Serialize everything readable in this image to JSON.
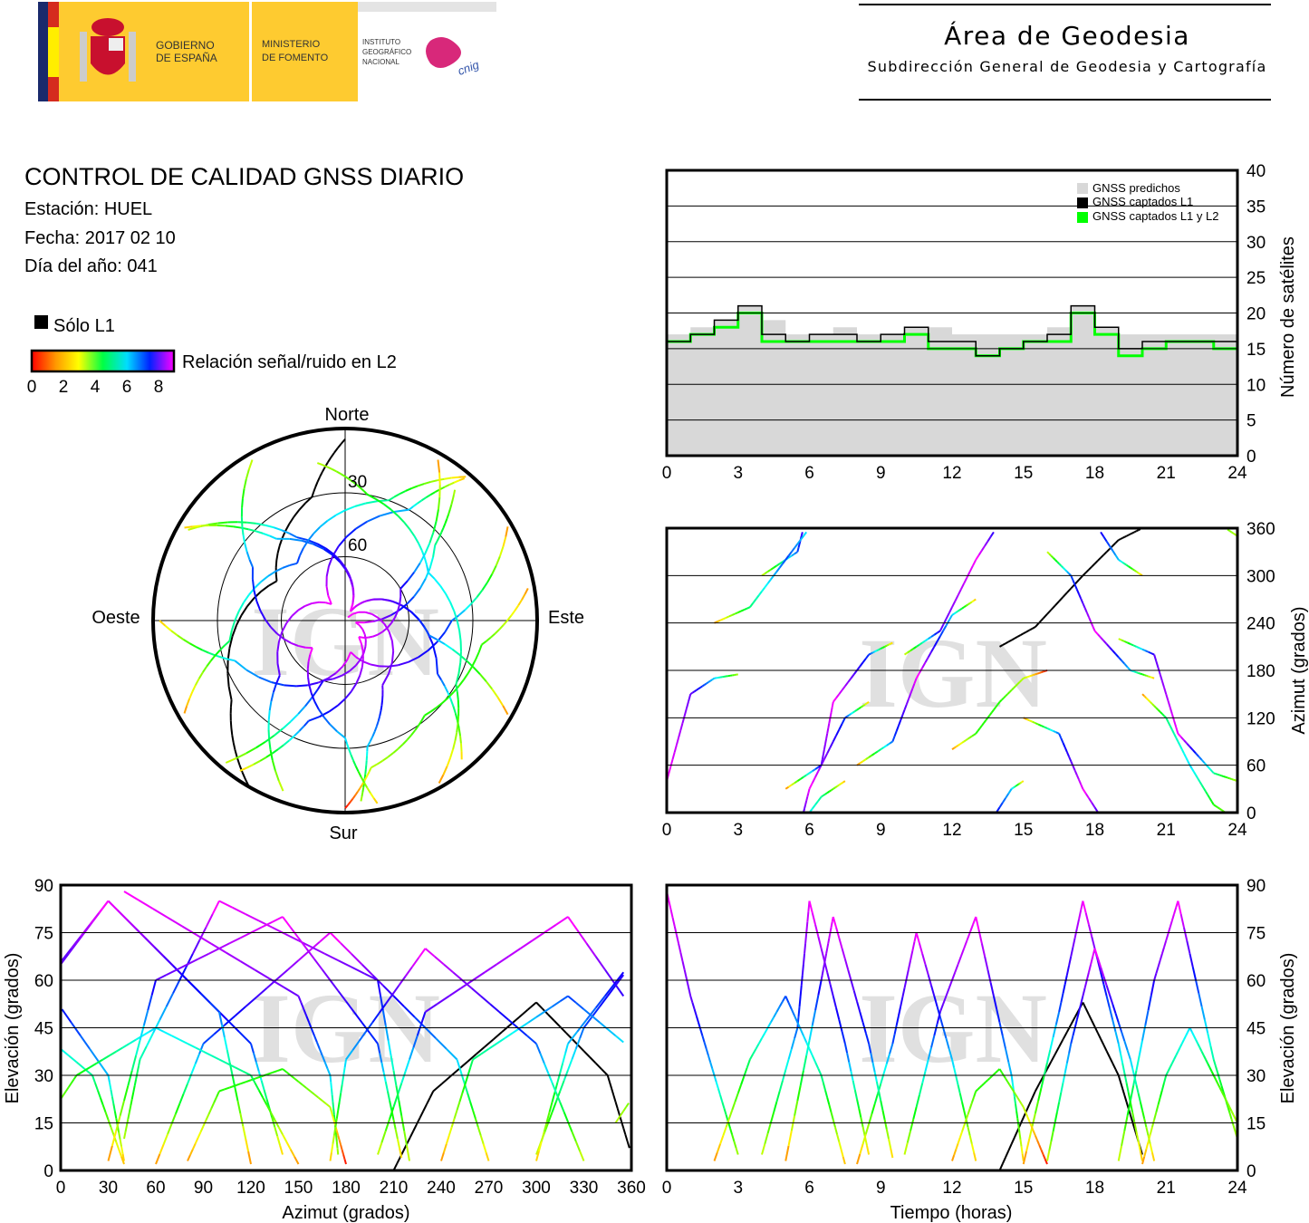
{
  "header": {
    "gov_line1": "GOBIERNO",
    "gov_line2": "DE ESPAÑA",
    "min_line1": "MINISTERIO",
    "min_line2": "DE FOMENTO",
    "ign_line1": "INSTITUTO",
    "ign_line2": "GEOGRÁFICO",
    "ign_line3": "NACIONAL",
    "cnig_logo": "cnig",
    "area_title": "Área de Geodesia",
    "area_subtitle": "Subdirección General de Geodesia y Cartografía"
  },
  "info": {
    "title": "CONTROL DE CALIDAD GNSS DIARIO",
    "station": "Estación: HUEL",
    "date": "Fecha: 2017 02 10",
    "doy": "Día del año: 041"
  },
  "legend": {
    "solo_l1": "Sólo L1",
    "snr_label": "Relación señal/ruido en L2",
    "snr_ticks": [
      "0",
      "2",
      "4",
      "6",
      "8"
    ],
    "solo_l1_color": "#000000"
  },
  "watermark": "IGN",
  "chart_data": [
    {
      "type": "line",
      "id": "satellite-count",
      "xlabel": "",
      "ylabel": "Número de satélites",
      "xlim": [
        0,
        24
      ],
      "ylim": [
        0,
        40
      ],
      "xticks": [
        "0",
        "3",
        "6",
        "9",
        "12",
        "15",
        "18",
        "21",
        "24"
      ],
      "yticks": [
        "0",
        "5",
        "10",
        "15",
        "20",
        "25",
        "30",
        "35",
        "40"
      ],
      "grid": true,
      "legend_position": "top-right",
      "x": [
        0,
        1,
        2,
        3,
        4,
        5,
        6,
        7,
        8,
        9,
        10,
        11,
        12,
        13,
        14,
        15,
        16,
        17,
        18,
        19,
        20,
        21,
        22,
        23,
        24
      ],
      "series": [
        {
          "name": "GNSS predichos",
          "color": "#d8d8d8",
          "values": [
            17,
            18,
            19,
            21,
            19,
            17,
            17,
            18,
            17,
            17,
            18,
            18,
            17,
            17,
            17,
            17,
            18,
            21,
            18,
            17,
            17,
            17,
            17,
            17,
            17
          ]
        },
        {
          "name": "GNSS captados L1",
          "color": "#000000",
          "values": [
            16,
            17,
            19,
            21,
            17,
            16,
            17,
            17,
            16,
            17,
            18,
            16,
            16,
            14,
            15,
            16,
            17,
            21,
            18,
            15,
            16,
            16,
            16,
            16,
            16
          ]
        },
        {
          "name": "GNSS captados L1 y L2",
          "color": "#00ff00",
          "values": [
            16,
            17,
            18,
            20,
            16,
            16,
            16,
            16,
            16,
            16,
            17,
            15,
            15,
            14,
            15,
            16,
            16,
            20,
            17,
            14,
            15,
            16,
            16,
            15,
            16
          ]
        }
      ]
    },
    {
      "type": "scatter",
      "id": "skyplot",
      "directions": {
        "north": "Norte",
        "south": "Sur",
        "west": "Oeste",
        "east": "Este"
      },
      "ring_labels": [
        "30",
        "60"
      ]
    },
    {
      "type": "scatter",
      "id": "azimuth-vs-time",
      "ylabel": "Azimut (grados)",
      "xlim": [
        0,
        24
      ],
      "ylim": [
        0,
        360
      ],
      "xticks": [
        "0",
        "3",
        "6",
        "9",
        "12",
        "15",
        "18",
        "21",
        "24"
      ],
      "yticks": [
        "0",
        "60",
        "120",
        "180",
        "240",
        "300",
        "360"
      ],
      "grid": true
    },
    {
      "type": "scatter",
      "id": "elevation-vs-azimuth",
      "xlabel": "Azimut (grados)",
      "ylabel": "Elevación (grados)",
      "xlim": [
        0,
        360
      ],
      "ylim": [
        0,
        90
      ],
      "xticks": [
        "0",
        "30",
        "60",
        "90",
        "120",
        "150",
        "180",
        "210",
        "240",
        "270",
        "300",
        "330",
        "360"
      ],
      "yticks": [
        "0",
        "15",
        "30",
        "45",
        "60",
        "75",
        "90"
      ],
      "grid": true
    },
    {
      "type": "scatter",
      "id": "elevation-vs-time",
      "xlabel": "Tiempo (horas)",
      "ylabel": "Elevación (grados)",
      "xlim": [
        0,
        24
      ],
      "ylim": [
        0,
        90
      ],
      "xticks": [
        "0",
        "3",
        "6",
        "9",
        "12",
        "15",
        "18",
        "21",
        "24"
      ],
      "yticks": [
        "0",
        "15",
        "30",
        "45",
        "60",
        "75",
        "90"
      ],
      "grid": true
    }
  ],
  "passes_note_fields": [
    "hour",
    "azimuth",
    "elevation",
    "snr"
  ],
  "passes": [
    [
      [
        14,
        210,
        0,
        null
      ],
      [
        15.5,
        235,
        25,
        null
      ],
      [
        17.5,
        300,
        53,
        null
      ],
      [
        19,
        345,
        30,
        null
      ],
      [
        20,
        360,
        5,
        null
      ]
    ],
    [
      [
        0,
        40,
        88,
        8
      ],
      [
        1,
        150,
        55,
        7
      ],
      [
        2,
        170,
        30,
        5
      ],
      [
        3,
        175,
        5,
        2
      ]
    ],
    [
      [
        4,
        300,
        5,
        2
      ],
      [
        5.5,
        330,
        45,
        6
      ],
      [
        6,
        390,
        85,
        8
      ],
      [
        7.5,
        480,
        40,
        6
      ],
      [
        8.5,
        500,
        5,
        1
      ]
    ],
    [
      [
        8,
        60,
        2,
        1
      ],
      [
        9.5,
        90,
        40,
        6
      ],
      [
        10.5,
        170,
        75,
        8
      ],
      [
        12,
        250,
        35,
        5
      ],
      [
        13,
        270,
        3,
        1
      ]
    ],
    [
      [
        10,
        200,
        5,
        2
      ],
      [
        11.5,
        230,
        50,
        7
      ],
      [
        13,
        320,
        80,
        8
      ],
      [
        14.5,
        390,
        30,
        5
      ],
      [
        15,
        400,
        3,
        1
      ]
    ],
    [
      [
        15,
        120,
        2,
        1
      ],
      [
        16.5,
        100,
        50,
        6
      ],
      [
        17.5,
        30,
        85,
        8
      ],
      [
        19,
        -40,
        40,
        5
      ],
      [
        20,
        -60,
        3,
        1
      ]
    ],
    [
      [
        19,
        220,
        3,
        2
      ],
      [
        20.5,
        200,
        60,
        7
      ],
      [
        21.5,
        100,
        85,
        8
      ],
      [
        23,
        50,
        35,
        4
      ],
      [
        24,
        40,
        10,
        2
      ]
    ],
    [
      [
        2,
        240,
        3,
        1
      ],
      [
        3.5,
        260,
        35,
        4
      ],
      [
        5,
        320,
        55,
        6
      ],
      [
        6.5,
        380,
        30,
        4
      ],
      [
        7.5,
        400,
        2,
        1
      ]
    ],
    [
      [
        12,
        80,
        3,
        1
      ],
      [
        13,
        100,
        25,
        3
      ],
      [
        14,
        140,
        32,
        3
      ],
      [
        15,
        170,
        20,
        2
      ],
      [
        16,
        180,
        2,
        0
      ]
    ],
    [
      [
        20,
        150,
        2,
        1
      ],
      [
        21,
        120,
        30,
        4
      ],
      [
        22,
        60,
        45,
        5
      ],
      [
        23,
        10,
        30,
        3
      ],
      [
        24,
        -10,
        15,
        2
      ]
    ],
    [
      [
        5,
        30,
        3,
        1
      ],
      [
        6.5,
        60,
        60,
        7
      ],
      [
        7,
        140,
        80,
        8
      ],
      [
        8.5,
        200,
        40,
        6
      ],
      [
        9.5,
        215,
        4,
        1
      ]
    ],
    [
      [
        16,
        330,
        3,
        2
      ],
      [
        17,
        300,
        40,
        6
      ],
      [
        18,
        230,
        70,
        8
      ],
      [
        19.5,
        180,
        35,
        5
      ],
      [
        20.5,
        170,
        3,
        1
      ]
    ]
  ]
}
